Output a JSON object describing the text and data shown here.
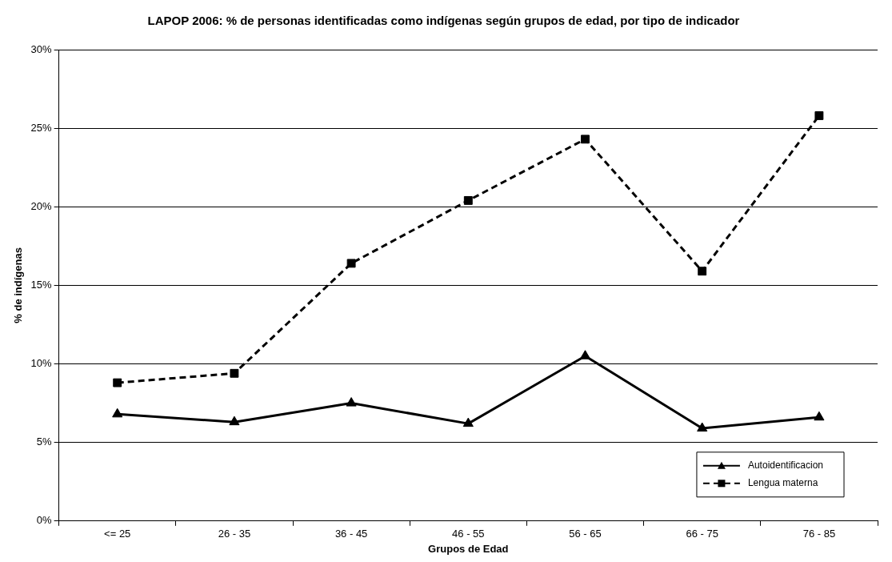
{
  "chart_data": {
    "type": "line",
    "title": "LAPOP 2006: % de personas identificadas como indígenas según grupos de edad, por tipo de indicador",
    "xlabel": "Grupos de Edad",
    "ylabel": "% de indígenas",
    "categories": [
      "<= 25",
      "26 - 35",
      "36 - 45",
      "46 - 55",
      "56 - 65",
      "66 - 75",
      "76 - 85"
    ],
    "series": [
      {
        "name": "Autoidentificacion",
        "color": "#000000",
        "marker": "triangle",
        "line_style": "solid",
        "values": [
          6.8,
          6.3,
          7.5,
          6.2,
          10.5,
          5.9,
          6.6
        ]
      },
      {
        "name": "Lengua materna",
        "color": "#000000",
        "marker": "square",
        "line_style": "dashed",
        "values": [
          8.8,
          9.4,
          16.4,
          20.4,
          24.3,
          15.9,
          25.8
        ]
      }
    ],
    "ylim": [
      0,
      30
    ],
    "yticks": [
      {
        "value": 0,
        "label": "0%"
      },
      {
        "value": 5,
        "label": "5%"
      },
      {
        "value": 10,
        "label": "10%"
      },
      {
        "value": 15,
        "label": "15%"
      },
      {
        "value": 20,
        "label": "20%"
      },
      {
        "value": 25,
        "label": "25%"
      },
      {
        "value": 30,
        "label": "30%"
      }
    ],
    "grid": "y",
    "legend": "bottom right"
  }
}
